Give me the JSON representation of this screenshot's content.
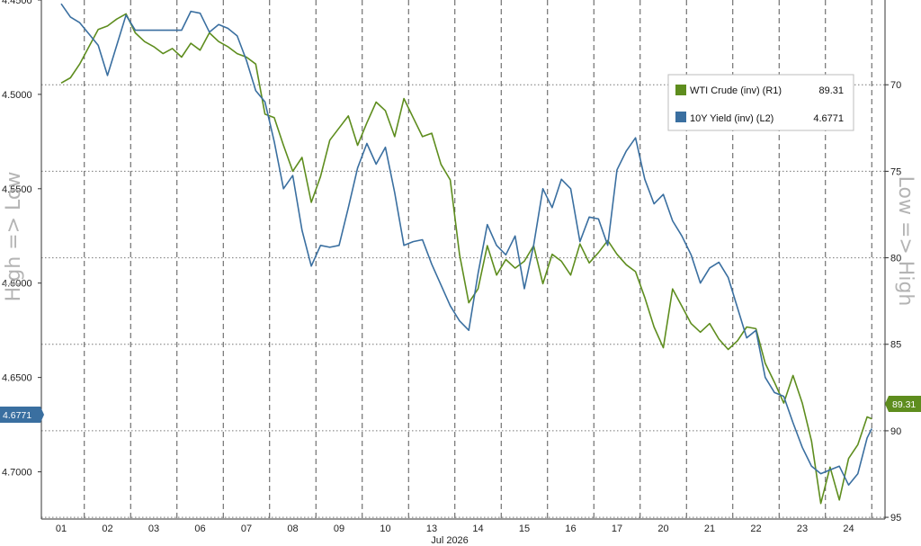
{
  "chart_data": {
    "type": "line",
    "x_labels": [
      "01",
      "02",
      "03",
      "06",
      "07",
      "08",
      "09",
      "10",
      "13",
      "14",
      "15",
      "16",
      "17",
      "20",
      "21",
      "22",
      "23",
      "24"
    ],
    "x_axis_title": "Jul 2026",
    "left_axis": {
      "label": "High => Low",
      "ticks": [
        "4.4500",
        "4.5000",
        "4.5500",
        "4.6000",
        "4.6500",
        "4.7000"
      ],
      "range": [
        4.45,
        4.725
      ],
      "inverted": true
    },
    "right_axis": {
      "label": "Low => High",
      "ticks": [
        "70",
        "75",
        "80",
        "85",
        "90",
        "95"
      ],
      "range": [
        65.1,
        95.1
      ],
      "inverted": true
    },
    "grid": {
      "vertical": "dashed",
      "horizontal": "dotted"
    },
    "legend_position": "top-right",
    "series": [
      {
        "name": "WTI Crude (inv) (R1)",
        "last_value": "89.31",
        "axis": "right",
        "color": "#5e8d1e",
        "points": [
          [
            0,
            69.9
          ],
          [
            0.2,
            69.6
          ],
          [
            0.4,
            68.8
          ],
          [
            0.6,
            67.8
          ],
          [
            0.8,
            66.8
          ],
          [
            1.0,
            66.6
          ],
          [
            1.2,
            66.2
          ],
          [
            1.4,
            65.9
          ],
          [
            1.6,
            67.0
          ],
          [
            1.8,
            67.5
          ],
          [
            2.0,
            67.8
          ],
          [
            2.2,
            68.2
          ],
          [
            2.4,
            67.9
          ],
          [
            2.6,
            68.4
          ],
          [
            2.8,
            67.6
          ],
          [
            3.0,
            68.0
          ],
          [
            3.2,
            67.0
          ],
          [
            3.4,
            67.5
          ],
          [
            3.6,
            67.8
          ],
          [
            3.8,
            68.2
          ],
          [
            4.0,
            68.4
          ],
          [
            4.2,
            68.8
          ],
          [
            4.4,
            71.7
          ],
          [
            4.6,
            71.9
          ],
          [
            4.8,
            73.5
          ],
          [
            5.0,
            75.0
          ],
          [
            5.2,
            74.2
          ],
          [
            5.4,
            76.8
          ],
          [
            5.6,
            75.3
          ],
          [
            5.8,
            73.2
          ],
          [
            6.0,
            72.5
          ],
          [
            6.2,
            71.8
          ],
          [
            6.4,
            73.5
          ],
          [
            6.6,
            72.2
          ],
          [
            6.8,
            71.0
          ],
          [
            7.0,
            71.5
          ],
          [
            7.2,
            73.0
          ],
          [
            7.4,
            70.8
          ],
          [
            7.6,
            71.9
          ],
          [
            7.8,
            73.0
          ],
          [
            8.0,
            72.8
          ],
          [
            8.2,
            74.6
          ],
          [
            8.4,
            75.5
          ],
          [
            8.6,
            79.8
          ],
          [
            8.8,
            82.6
          ],
          [
            9.0,
            81.8
          ],
          [
            9.2,
            79.3
          ],
          [
            9.4,
            81.0
          ],
          [
            9.6,
            80.1
          ],
          [
            9.8,
            80.6
          ],
          [
            10.0,
            80.2
          ],
          [
            10.2,
            79.3
          ],
          [
            10.4,
            81.5
          ],
          [
            10.6,
            79.8
          ],
          [
            10.8,
            80.2
          ],
          [
            11.0,
            81.0
          ],
          [
            11.2,
            79.2
          ],
          [
            11.4,
            80.3
          ],
          [
            11.6,
            79.7
          ],
          [
            11.8,
            79.0
          ],
          [
            12.0,
            79.8
          ],
          [
            12.2,
            80.4
          ],
          [
            12.4,
            80.8
          ],
          [
            12.6,
            82.3
          ],
          [
            12.8,
            84.0
          ],
          [
            13.0,
            85.2
          ],
          [
            13.2,
            81.8
          ],
          [
            13.4,
            82.8
          ],
          [
            13.6,
            83.8
          ],
          [
            13.8,
            84.3
          ],
          [
            14.0,
            83.8
          ],
          [
            14.2,
            84.7
          ],
          [
            14.4,
            85.3
          ],
          [
            14.6,
            84.8
          ],
          [
            14.8,
            84.0
          ],
          [
            15.0,
            84.1
          ],
          [
            15.2,
            86.1
          ],
          [
            15.4,
            87.2
          ],
          [
            15.6,
            88.4
          ],
          [
            15.8,
            86.8
          ],
          [
            16.0,
            88.4
          ],
          [
            16.2,
            90.6
          ],
          [
            16.4,
            94.2
          ],
          [
            16.6,
            92.1
          ],
          [
            16.8,
            94.0
          ],
          [
            17.0,
            91.6
          ],
          [
            17.2,
            90.8
          ],
          [
            17.4,
            89.2
          ],
          [
            17.5,
            89.31
          ]
        ]
      },
      {
        "name": "10Y Yield (inv) (L2)",
        "last_value": "4.6771",
        "axis": "left",
        "color": "#3a6fa0",
        "points": [
          [
            0,
            4.452
          ],
          [
            0.2,
            4.459
          ],
          [
            0.4,
            4.462
          ],
          [
            0.6,
            4.468
          ],
          [
            0.8,
            4.474
          ],
          [
            1.0,
            4.49
          ],
          [
            1.2,
            4.474
          ],
          [
            1.4,
            4.458
          ],
          [
            1.6,
            4.466
          ],
          [
            1.8,
            4.466
          ],
          [
            2.0,
            4.466
          ],
          [
            2.2,
            4.466
          ],
          [
            2.4,
            4.466
          ],
          [
            2.6,
            4.466
          ],
          [
            2.8,
            4.456
          ],
          [
            3.0,
            4.457
          ],
          [
            3.2,
            4.467
          ],
          [
            3.4,
            4.463
          ],
          [
            3.6,
            4.465
          ],
          [
            3.8,
            4.469
          ],
          [
            4.0,
            4.482
          ],
          [
            4.2,
            4.498
          ],
          [
            4.4,
            4.504
          ],
          [
            4.6,
            4.525
          ],
          [
            4.8,
            4.55
          ],
          [
            5.0,
            4.543
          ],
          [
            5.2,
            4.572
          ],
          [
            5.4,
            4.591
          ],
          [
            5.6,
            4.58
          ],
          [
            5.8,
            4.581
          ],
          [
            6.0,
            4.58
          ],
          [
            6.2,
            4.56
          ],
          [
            6.4,
            4.539
          ],
          [
            6.6,
            4.526
          ],
          [
            6.8,
            4.537
          ],
          [
            7.0,
            4.528
          ],
          [
            7.2,
            4.552
          ],
          [
            7.4,
            4.58
          ],
          [
            7.6,
            4.578
          ],
          [
            7.8,
            4.577
          ],
          [
            8.0,
            4.59
          ],
          [
            8.2,
            4.601
          ],
          [
            8.4,
            4.612
          ],
          [
            8.6,
            4.62
          ],
          [
            8.8,
            4.625
          ],
          [
            9.0,
            4.595
          ],
          [
            9.2,
            4.569
          ],
          [
            9.4,
            4.58
          ],
          [
            9.6,
            4.585
          ],
          [
            9.8,
            4.575
          ],
          [
            10.0,
            4.603
          ],
          [
            10.2,
            4.58
          ],
          [
            10.4,
            4.55
          ],
          [
            10.6,
            4.56
          ],
          [
            10.8,
            4.545
          ],
          [
            11.0,
            4.55
          ],
          [
            11.2,
            4.578
          ],
          [
            11.4,
            4.565
          ],
          [
            11.6,
            4.566
          ],
          [
            11.8,
            4.58
          ],
          [
            12.0,
            4.54
          ],
          [
            12.2,
            4.53
          ],
          [
            12.4,
            4.523
          ],
          [
            12.6,
            4.545
          ],
          [
            12.8,
            4.558
          ],
          [
            13.0,
            4.553
          ],
          [
            13.2,
            4.567
          ],
          [
            13.4,
            4.575
          ],
          [
            13.6,
            4.585
          ],
          [
            13.8,
            4.6
          ],
          [
            14.0,
            4.592
          ],
          [
            14.2,
            4.589
          ],
          [
            14.4,
            4.597
          ],
          [
            14.6,
            4.613
          ],
          [
            14.8,
            4.629
          ],
          [
            15.0,
            4.625
          ],
          [
            15.2,
            4.65
          ],
          [
            15.4,
            4.658
          ],
          [
            15.6,
            4.66
          ],
          [
            15.8,
            4.674
          ],
          [
            16.0,
            4.687
          ],
          [
            16.2,
            4.697
          ],
          [
            16.4,
            4.701
          ],
          [
            16.6,
            4.699
          ],
          [
            16.8,
            4.697
          ],
          [
            17.0,
            4.707
          ],
          [
            17.2,
            4.701
          ],
          [
            17.4,
            4.682
          ],
          [
            17.5,
            4.6771
          ]
        ]
      }
    ]
  }
}
